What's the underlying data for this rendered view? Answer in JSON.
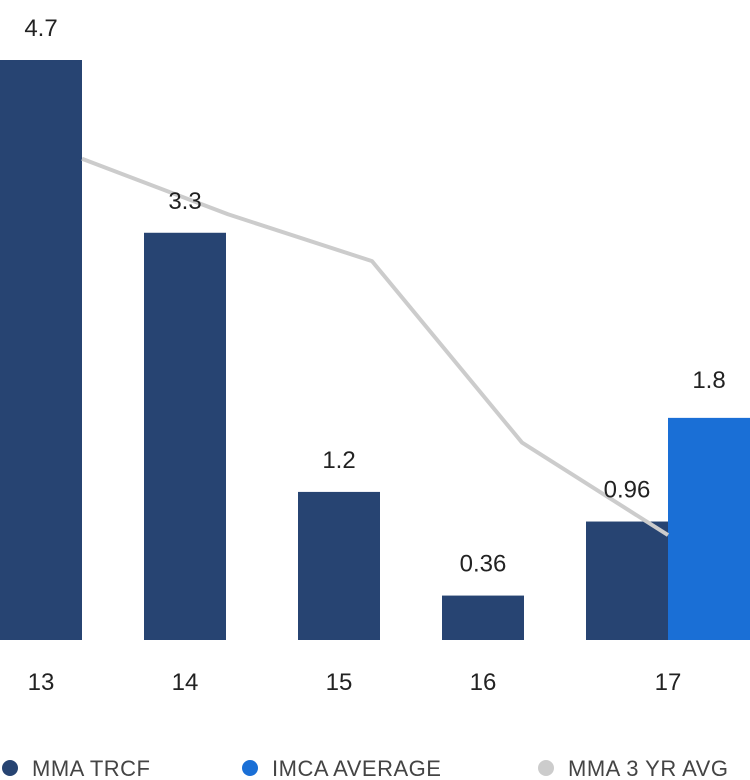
{
  "chart_data": {
    "type": "bar",
    "categories": [
      "13",
      "14",
      "15",
      "16",
      "17"
    ],
    "series": [
      {
        "name": "MMA TRCF",
        "kind": "bar",
        "color": "#274472",
        "values": [
          4.7,
          3.3,
          1.2,
          0.36,
          0.96
        ],
        "labels": [
          "4.7",
          "3.3",
          "1.2",
          "0.36",
          "0.96"
        ]
      },
      {
        "name": "IMCA AVERAGE",
        "kind": "bar",
        "color": "#1a6fd6",
        "values": [
          null,
          null,
          null,
          null,
          1.8
        ],
        "labels": [
          "",
          "",
          "",
          "",
          "1.8"
        ]
      },
      {
        "name": "MMA 3 YR AVG",
        "kind": "line",
        "color": "#cccccc",
        "values": [
          3.9,
          3.45,
          3.07,
          1.6,
          0.85
        ]
      }
    ],
    "ylim": [
      0,
      4.7
    ],
    "grid": false,
    "legend_position": "bottom"
  }
}
